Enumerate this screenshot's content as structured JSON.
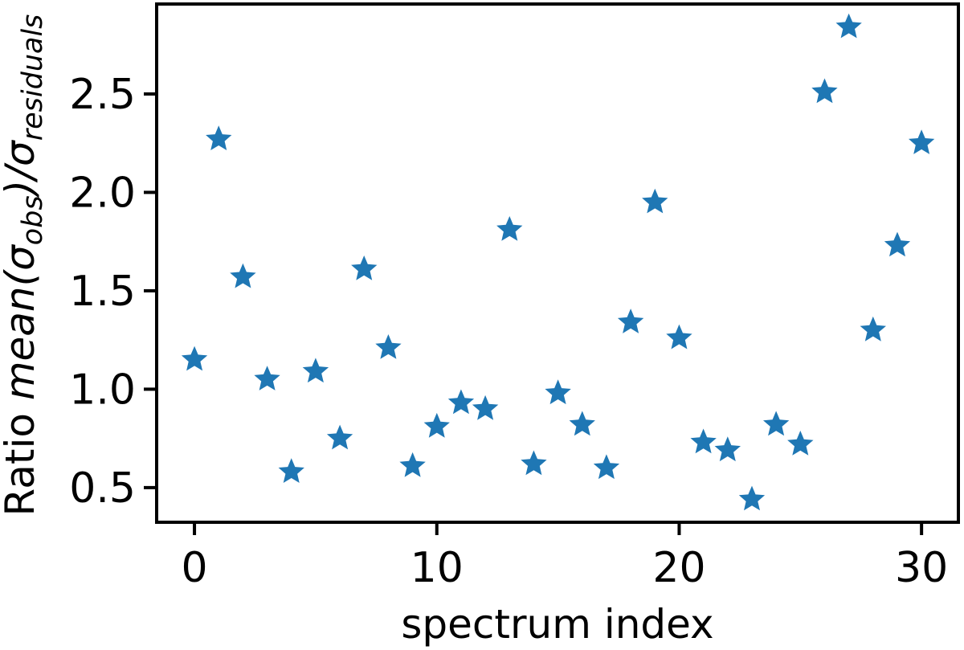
{
  "figure": {
    "background": "#ffffff",
    "spine_color": "#000000",
    "text_color": "#000000"
  },
  "chart_data": {
    "type": "scatter",
    "title": "",
    "xlabel": "spectrum index",
    "ylabel": "Ratio mean(σ_obs)/σ_residuals",
    "ylabel_parts": {
      "prefix": "Ratio ",
      "italic_main": "mean(σ",
      "sub1": "obs",
      "italic_mid": ")/σ",
      "sub2": "residuals"
    },
    "marker": "star",
    "marker_color": "#1f77b4",
    "grid": false,
    "legend": null,
    "xlim": [
      -1.56,
      31.52
    ],
    "ylim": [
      0.324,
      2.957
    ],
    "xticks": [
      0,
      10,
      20,
      30
    ],
    "xtick_labels": [
      "0",
      "10",
      "20",
      "30"
    ],
    "yticks": [
      0.5,
      1.0,
      1.5,
      2.0,
      2.5
    ],
    "ytick_labels": [
      "0.5",
      "1.0",
      "1.5",
      "2.0",
      "2.5"
    ],
    "x": [
      0,
      1,
      2,
      3,
      4,
      5,
      6,
      7,
      8,
      9,
      10,
      11,
      12,
      13,
      14,
      15,
      16,
      17,
      18,
      19,
      20,
      21,
      22,
      23,
      24,
      25,
      26,
      27,
      28,
      29,
      30
    ],
    "y": [
      1.15,
      2.27,
      1.57,
      1.05,
      0.58,
      1.09,
      0.75,
      1.61,
      1.21,
      0.61,
      0.81,
      0.93,
      0.9,
      1.81,
      0.62,
      0.98,
      0.82,
      0.6,
      1.34,
      1.95,
      1.26,
      0.73,
      0.69,
      0.44,
      0.82,
      0.72,
      2.51,
      2.84,
      1.3,
      1.73,
      2.25
    ]
  }
}
